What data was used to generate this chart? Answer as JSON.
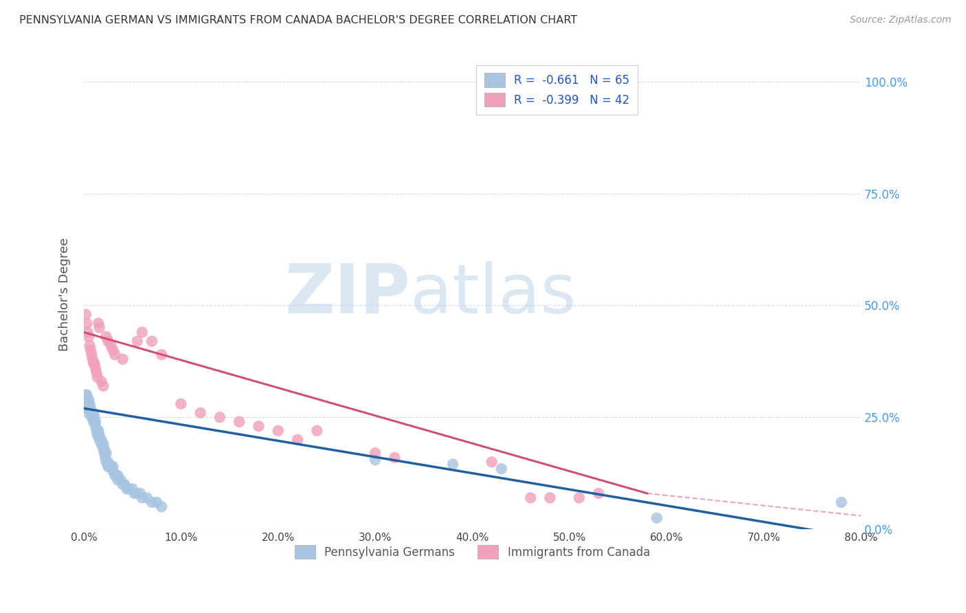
{
  "title": "PENNSYLVANIA GERMAN VS IMMIGRANTS FROM CANADA BACHELOR'S DEGREE CORRELATION CHART",
  "source": "Source: ZipAtlas.com",
  "ylabel": "Bachelor's Degree",
  "legend_blue_label": "R =  -0.661   N = 65",
  "legend_pink_label": "R =  -0.399   N = 42",
  "legend_bottom_blue": "Pennsylvania Germans",
  "legend_bottom_pink": "Immigrants from Canada",
  "blue_color": "#a8c4e0",
  "blue_line_color": "#2060a0",
  "pink_color": "#f0a0b8",
  "pink_line_color": "#d05070",
  "blue_scatter_x": [
    0.002,
    0.003,
    0.003,
    0.004,
    0.005,
    0.005,
    0.006,
    0.006,
    0.007,
    0.008,
    0.008,
    0.009,
    0.01,
    0.01,
    0.011,
    0.011,
    0.012,
    0.012,
    0.013,
    0.014,
    0.014,
    0.015,
    0.015,
    0.016,
    0.016,
    0.017,
    0.018,
    0.018,
    0.019,
    0.02,
    0.02,
    0.021,
    0.021,
    0.022,
    0.023,
    0.023,
    0.025,
    0.025,
    0.026,
    0.028,
    0.03,
    0.03,
    0.032,
    0.033,
    0.035,
    0.035,
    0.038,
    0.04,
    0.042,
    0.044,
    0.046,
    0.05,
    0.052,
    0.055,
    0.058,
    0.06,
    0.065,
    0.07,
    0.075,
    0.08,
    0.3,
    0.38,
    0.43,
    0.59,
    0.78
  ],
  "blue_scatter_y": [
    0.3,
    0.28,
    0.3,
    0.27,
    0.29,
    0.26,
    0.28,
    0.27,
    0.27,
    0.26,
    0.25,
    0.25,
    0.26,
    0.24,
    0.25,
    0.24,
    0.23,
    0.24,
    0.22,
    0.22,
    0.21,
    0.21,
    0.22,
    0.2,
    0.21,
    0.2,
    0.19,
    0.2,
    0.19,
    0.18,
    0.19,
    0.17,
    0.18,
    0.16,
    0.17,
    0.15,
    0.15,
    0.14,
    0.14,
    0.14,
    0.13,
    0.14,
    0.12,
    0.12,
    0.11,
    0.12,
    0.11,
    0.1,
    0.1,
    0.09,
    0.09,
    0.09,
    0.08,
    0.08,
    0.08,
    0.07,
    0.07,
    0.06,
    0.06,
    0.05,
    0.155,
    0.145,
    0.135,
    0.025,
    0.06
  ],
  "pink_scatter_x": [
    0.002,
    0.003,
    0.004,
    0.005,
    0.006,
    0.007,
    0.008,
    0.009,
    0.01,
    0.011,
    0.012,
    0.013,
    0.014,
    0.015,
    0.016,
    0.018,
    0.02,
    0.023,
    0.025,
    0.028,
    0.03,
    0.032,
    0.04,
    0.055,
    0.06,
    0.07,
    0.08,
    0.1,
    0.12,
    0.14,
    0.16,
    0.18,
    0.2,
    0.22,
    0.24,
    0.3,
    0.32,
    0.42,
    0.46,
    0.48,
    0.51,
    0.53
  ],
  "pink_scatter_y": [
    0.48,
    0.46,
    0.44,
    0.43,
    0.41,
    0.4,
    0.39,
    0.38,
    0.37,
    0.37,
    0.36,
    0.35,
    0.34,
    0.46,
    0.45,
    0.33,
    0.32,
    0.43,
    0.42,
    0.41,
    0.4,
    0.39,
    0.38,
    0.42,
    0.44,
    0.42,
    0.39,
    0.28,
    0.26,
    0.25,
    0.24,
    0.23,
    0.22,
    0.2,
    0.22,
    0.17,
    0.16,
    0.15,
    0.07,
    0.07,
    0.07,
    0.08
  ],
  "xlim": [
    0,
    0.8
  ],
  "ylim": [
    0,
    1.05
  ],
  "xtick_positions": [
    0,
    0.1,
    0.2,
    0.3,
    0.4,
    0.5,
    0.6,
    0.7,
    0.8
  ],
  "xtick_labels": [
    "0.0%",
    "10.0%",
    "20.0%",
    "30.0%",
    "40.0%",
    "50.0%",
    "60.0%",
    "70.0%",
    "80.0%"
  ],
  "ytick_positions": [
    0,
    0.25,
    0.5,
    0.75,
    1.0
  ],
  "ytick_labels": [
    "0.0%",
    "25.0%",
    "50.0%",
    "75.0%",
    "100.0%"
  ],
  "blue_trend": [
    0.0,
    0.8,
    0.27,
    -0.02
  ],
  "pink_trend": [
    0.0,
    0.58,
    0.44,
    0.08
  ]
}
